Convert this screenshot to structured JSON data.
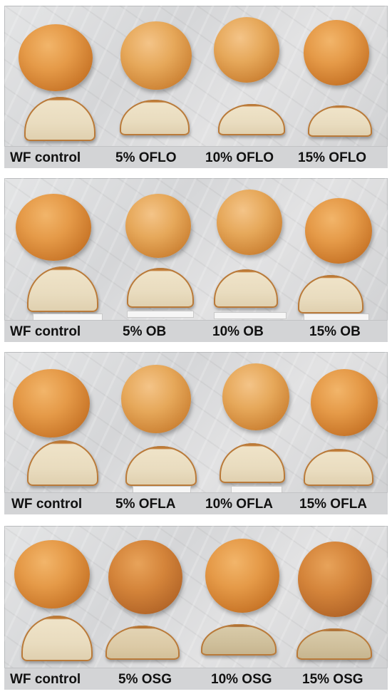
{
  "panels": [
    {
      "labels": [
        "WF control",
        "5% OFLO",
        "10% OFLO",
        "15% OFLO"
      ]
    },
    {
      "labels": [
        "WF control",
        "5% OB",
        "10% OB",
        "15% OB"
      ]
    },
    {
      "labels": [
        "WF control",
        "5% OFLA",
        "10% OFLA",
        "15% OFLA"
      ]
    },
    {
      "labels": [
        "WF control",
        "5% OSG",
        "10% OSG",
        "15% OSG"
      ]
    }
  ]
}
